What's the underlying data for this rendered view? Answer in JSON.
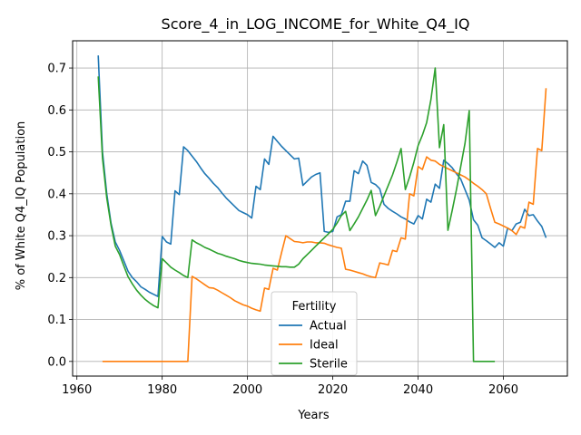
{
  "chart_data": {
    "type": "line",
    "title": "Score_4_in_LOG_INCOME_for_White_Q4_IQ",
    "xlabel": "Years",
    "ylabel": "% of White Q4_IQ Population",
    "xlim": [
      1959,
      2075
    ],
    "ylim": [
      -0.035,
      0.765
    ],
    "xticks": [
      1960,
      1980,
      2000,
      2020,
      2040,
      2060
    ],
    "yticks": [
      0.0,
      0.1,
      0.2,
      0.3,
      0.4,
      0.5,
      0.6,
      0.7
    ],
    "ytick_labels": [
      "0.0",
      "0.1",
      "0.2",
      "0.3",
      "0.4",
      "0.5",
      "0.6",
      "0.7"
    ],
    "grid": true,
    "legend": {
      "title": "Fertility",
      "placement": "lower-center"
    },
    "series": [
      {
        "name": "Actual",
        "color": "#1f77b4",
        "points": [
          [
            1965,
            0.73
          ],
          [
            1966,
            0.5
          ],
          [
            1967,
            0.4
          ],
          [
            1968,
            0.33
          ],
          [
            1969,
            0.285
          ],
          [
            1970,
            0.265
          ],
          [
            1971,
            0.24
          ],
          [
            1972,
            0.215
          ],
          [
            1973,
            0.2
          ],
          [
            1974,
            0.19
          ],
          [
            1975,
            0.178
          ],
          [
            1976,
            0.172
          ],
          [
            1977,
            0.165
          ],
          [
            1978,
            0.16
          ],
          [
            1979,
            0.155
          ],
          [
            1980,
            0.298
          ],
          [
            1981,
            0.285
          ],
          [
            1982,
            0.28
          ],
          [
            1983,
            0.407
          ],
          [
            1984,
            0.398
          ],
          [
            1985,
            0.512
          ],
          [
            1986,
            0.503
          ],
          [
            1987,
            0.49
          ],
          [
            1988,
            0.477
          ],
          [
            1989,
            0.462
          ],
          [
            1990,
            0.448
          ],
          [
            1991,
            0.437
          ],
          [
            1992,
            0.425
          ],
          [
            1993,
            0.415
          ],
          [
            1994,
            0.402
          ],
          [
            1995,
            0.39
          ],
          [
            1996,
            0.38
          ],
          [
            1997,
            0.37
          ],
          [
            1998,
            0.36
          ],
          [
            1999,
            0.355
          ],
          [
            2000,
            0.35
          ],
          [
            2001,
            0.342
          ],
          [
            2002,
            0.418
          ],
          [
            2003,
            0.41
          ],
          [
            2004,
            0.483
          ],
          [
            2005,
            0.47
          ],
          [
            2006,
            0.537
          ],
          [
            2007,
            0.525
          ],
          [
            2008,
            0.513
          ],
          [
            2009,
            0.503
          ],
          [
            2010,
            0.493
          ],
          [
            2011,
            0.483
          ],
          [
            2012,
            0.485
          ],
          [
            2013,
            0.42
          ],
          [
            2014,
            0.43
          ],
          [
            2015,
            0.44
          ],
          [
            2016,
            0.446
          ],
          [
            2017,
            0.45
          ],
          [
            2018,
            0.31
          ],
          [
            2019,
            0.308
          ],
          [
            2020,
            0.31
          ],
          [
            2021,
            0.345
          ],
          [
            2022,
            0.35
          ],
          [
            2023,
            0.382
          ],
          [
            2024,
            0.382
          ],
          [
            2025,
            0.455
          ],
          [
            2026,
            0.448
          ],
          [
            2027,
            0.478
          ],
          [
            2028,
            0.468
          ],
          [
            2029,
            0.427
          ],
          [
            2030,
            0.422
          ],
          [
            2031,
            0.412
          ],
          [
            2032,
            0.375
          ],
          [
            2033,
            0.365
          ],
          [
            2034,
            0.358
          ],
          [
            2035,
            0.352
          ],
          [
            2036,
            0.345
          ],
          [
            2037,
            0.34
          ],
          [
            2038,
            0.333
          ],
          [
            2039,
            0.328
          ],
          [
            2040,
            0.348
          ],
          [
            2041,
            0.34
          ],
          [
            2042,
            0.387
          ],
          [
            2043,
            0.38
          ],
          [
            2044,
            0.423
          ],
          [
            2045,
            0.413
          ],
          [
            2046,
            0.48
          ],
          [
            2047,
            0.472
          ],
          [
            2048,
            0.462
          ],
          [
            2049,
            0.448
          ],
          [
            2050,
            0.435
          ],
          [
            2051,
            0.41
          ],
          [
            2052,
            0.385
          ],
          [
            2053,
            0.338
          ],
          [
            2054,
            0.325
          ],
          [
            2055,
            0.295
          ],
          [
            2056,
            0.288
          ],
          [
            2057,
            0.28
          ],
          [
            2058,
            0.272
          ],
          [
            2059,
            0.283
          ],
          [
            2060,
            0.275
          ],
          [
            2061,
            0.318
          ],
          [
            2062,
            0.312
          ],
          [
            2063,
            0.328
          ],
          [
            2064,
            0.332
          ],
          [
            2065,
            0.363
          ],
          [
            2066,
            0.348
          ],
          [
            2067,
            0.35
          ],
          [
            2068,
            0.335
          ],
          [
            2069,
            0.322
          ],
          [
            2070,
            0.295
          ]
        ]
      },
      {
        "name": "Ideal",
        "color": "#ff7f0e",
        "points": [
          [
            1966,
            0.0
          ],
          [
            1986,
            0.0
          ],
          [
            1987,
            0.203
          ],
          [
            1988,
            0.197
          ],
          [
            1989,
            0.19
          ],
          [
            1990,
            0.183
          ],
          [
            1991,
            0.176
          ],
          [
            1992,
            0.175
          ],
          [
            1993,
            0.17
          ],
          [
            1994,
            0.164
          ],
          [
            1995,
            0.158
          ],
          [
            1996,
            0.152
          ],
          [
            1997,
            0.145
          ],
          [
            1998,
            0.14
          ],
          [
            1999,
            0.135
          ],
          [
            2000,
            0.132
          ],
          [
            2001,
            0.127
          ],
          [
            2002,
            0.123
          ],
          [
            2003,
            0.12
          ],
          [
            2004,
            0.175
          ],
          [
            2005,
            0.172
          ],
          [
            2006,
            0.222
          ],
          [
            2007,
            0.218
          ],
          [
            2008,
            0.26
          ],
          [
            2009,
            0.3
          ],
          [
            2010,
            0.293
          ],
          [
            2011,
            0.286
          ],
          [
            2012,
            0.285
          ],
          [
            2013,
            0.283
          ],
          [
            2014,
            0.285
          ],
          [
            2015,
            0.285
          ],
          [
            2016,
            0.283
          ],
          [
            2017,
            0.283
          ],
          [
            2018,
            0.282
          ],
          [
            2019,
            0.278
          ],
          [
            2020,
            0.275
          ],
          [
            2021,
            0.272
          ],
          [
            2022,
            0.27
          ],
          [
            2023,
            0.22
          ],
          [
            2024,
            0.218
          ],
          [
            2025,
            0.215
          ],
          [
            2026,
            0.212
          ],
          [
            2027,
            0.209
          ],
          [
            2028,
            0.205
          ],
          [
            2029,
            0.202
          ],
          [
            2030,
            0.2
          ],
          [
            2031,
            0.235
          ],
          [
            2032,
            0.233
          ],
          [
            2033,
            0.23
          ],
          [
            2034,
            0.265
          ],
          [
            2035,
            0.262
          ],
          [
            2036,
            0.295
          ],
          [
            2037,
            0.292
          ],
          [
            2038,
            0.4
          ],
          [
            2039,
            0.395
          ],
          [
            2040,
            0.465
          ],
          [
            2041,
            0.458
          ],
          [
            2042,
            0.488
          ],
          [
            2043,
            0.48
          ],
          [
            2044,
            0.478
          ],
          [
            2045,
            0.47
          ],
          [
            2046,
            0.465
          ],
          [
            2047,
            0.46
          ],
          [
            2048,
            0.455
          ],
          [
            2049,
            0.45
          ],
          [
            2050,
            0.445
          ],
          [
            2051,
            0.44
          ],
          [
            2052,
            0.433
          ],
          [
            2053,
            0.425
          ],
          [
            2054,
            0.418
          ],
          [
            2055,
            0.41
          ],
          [
            2056,
            0.4
          ],
          [
            2057,
            0.365
          ],
          [
            2058,
            0.332
          ],
          [
            2059,
            0.328
          ],
          [
            2060,
            0.323
          ],
          [
            2061,
            0.318
          ],
          [
            2062,
            0.312
          ],
          [
            2063,
            0.303
          ],
          [
            2064,
            0.322
          ],
          [
            2065,
            0.318
          ],
          [
            2066,
            0.38
          ],
          [
            2067,
            0.375
          ],
          [
            2068,
            0.508
          ],
          [
            2069,
            0.503
          ],
          [
            2070,
            0.652
          ]
        ]
      },
      {
        "name": "Sterile",
        "color": "#2ca02c",
        "points": [
          [
            1965,
            0.68
          ],
          [
            1966,
            0.485
          ],
          [
            1967,
            0.39
          ],
          [
            1968,
            0.325
          ],
          [
            1969,
            0.275
          ],
          [
            1970,
            0.255
          ],
          [
            1971,
            0.228
          ],
          [
            1972,
            0.202
          ],
          [
            1973,
            0.185
          ],
          [
            1974,
            0.17
          ],
          [
            1975,
            0.158
          ],
          [
            1976,
            0.148
          ],
          [
            1977,
            0.14
          ],
          [
            1978,
            0.133
          ],
          [
            1979,
            0.128
          ],
          [
            1980,
            0.245
          ],
          [
            1981,
            0.235
          ],
          [
            1982,
            0.225
          ],
          [
            1983,
            0.218
          ],
          [
            1984,
            0.212
          ],
          [
            1985,
            0.205
          ],
          [
            1986,
            0.2
          ],
          [
            1987,
            0.29
          ],
          [
            1988,
            0.283
          ],
          [
            1989,
            0.278
          ],
          [
            1990,
            0.272
          ],
          [
            1991,
            0.268
          ],
          [
            1992,
            0.263
          ],
          [
            1993,
            0.258
          ],
          [
            1994,
            0.255
          ],
          [
            1995,
            0.251
          ],
          [
            1996,
            0.248
          ],
          [
            1997,
            0.245
          ],
          [
            1998,
            0.241
          ],
          [
            1999,
            0.238
          ],
          [
            2000,
            0.236
          ],
          [
            2001,
            0.234
          ],
          [
            2002,
            0.233
          ],
          [
            2003,
            0.232
          ],
          [
            2004,
            0.23
          ],
          [
            2005,
            0.229
          ],
          [
            2006,
            0.228
          ],
          [
            2007,
            0.227
          ],
          [
            2008,
            0.226
          ],
          [
            2009,
            0.226
          ],
          [
            2010,
            0.225
          ],
          [
            2011,
            0.225
          ],
          [
            2012,
            0.232
          ],
          [
            2013,
            0.245
          ],
          [
            2014,
            0.255
          ],
          [
            2015,
            0.265
          ],
          [
            2016,
            0.275
          ],
          [
            2017,
            0.285
          ],
          [
            2018,
            0.295
          ],
          [
            2019,
            0.305
          ],
          [
            2020,
            0.315
          ],
          [
            2021,
            0.33
          ],
          [
            2022,
            0.348
          ],
          [
            2023,
            0.358
          ],
          [
            2024,
            0.312
          ],
          [
            2025,
            0.328
          ],
          [
            2026,
            0.345
          ],
          [
            2027,
            0.365
          ],
          [
            2028,
            0.385
          ],
          [
            2029,
            0.408
          ],
          [
            2030,
            0.348
          ],
          [
            2031,
            0.37
          ],
          [
            2032,
            0.395
          ],
          [
            2033,
            0.42
          ],
          [
            2034,
            0.445
          ],
          [
            2035,
            0.475
          ],
          [
            2036,
            0.508
          ],
          [
            2037,
            0.41
          ],
          [
            2038,
            0.44
          ],
          [
            2039,
            0.475
          ],
          [
            2040,
            0.515
          ],
          [
            2041,
            0.54
          ],
          [
            2042,
            0.57
          ],
          [
            2043,
            0.625
          ],
          [
            2044,
            0.7
          ],
          [
            2045,
            0.51
          ],
          [
            2046,
            0.565
          ],
          [
            2047,
            0.313
          ],
          [
            2048,
            0.36
          ],
          [
            2049,
            0.41
          ],
          [
            2050,
            0.465
          ],
          [
            2051,
            0.52
          ],
          [
            2052,
            0.598
          ],
          [
            2053,
            0.0
          ],
          [
            2058,
            0.0
          ]
        ]
      }
    ]
  }
}
